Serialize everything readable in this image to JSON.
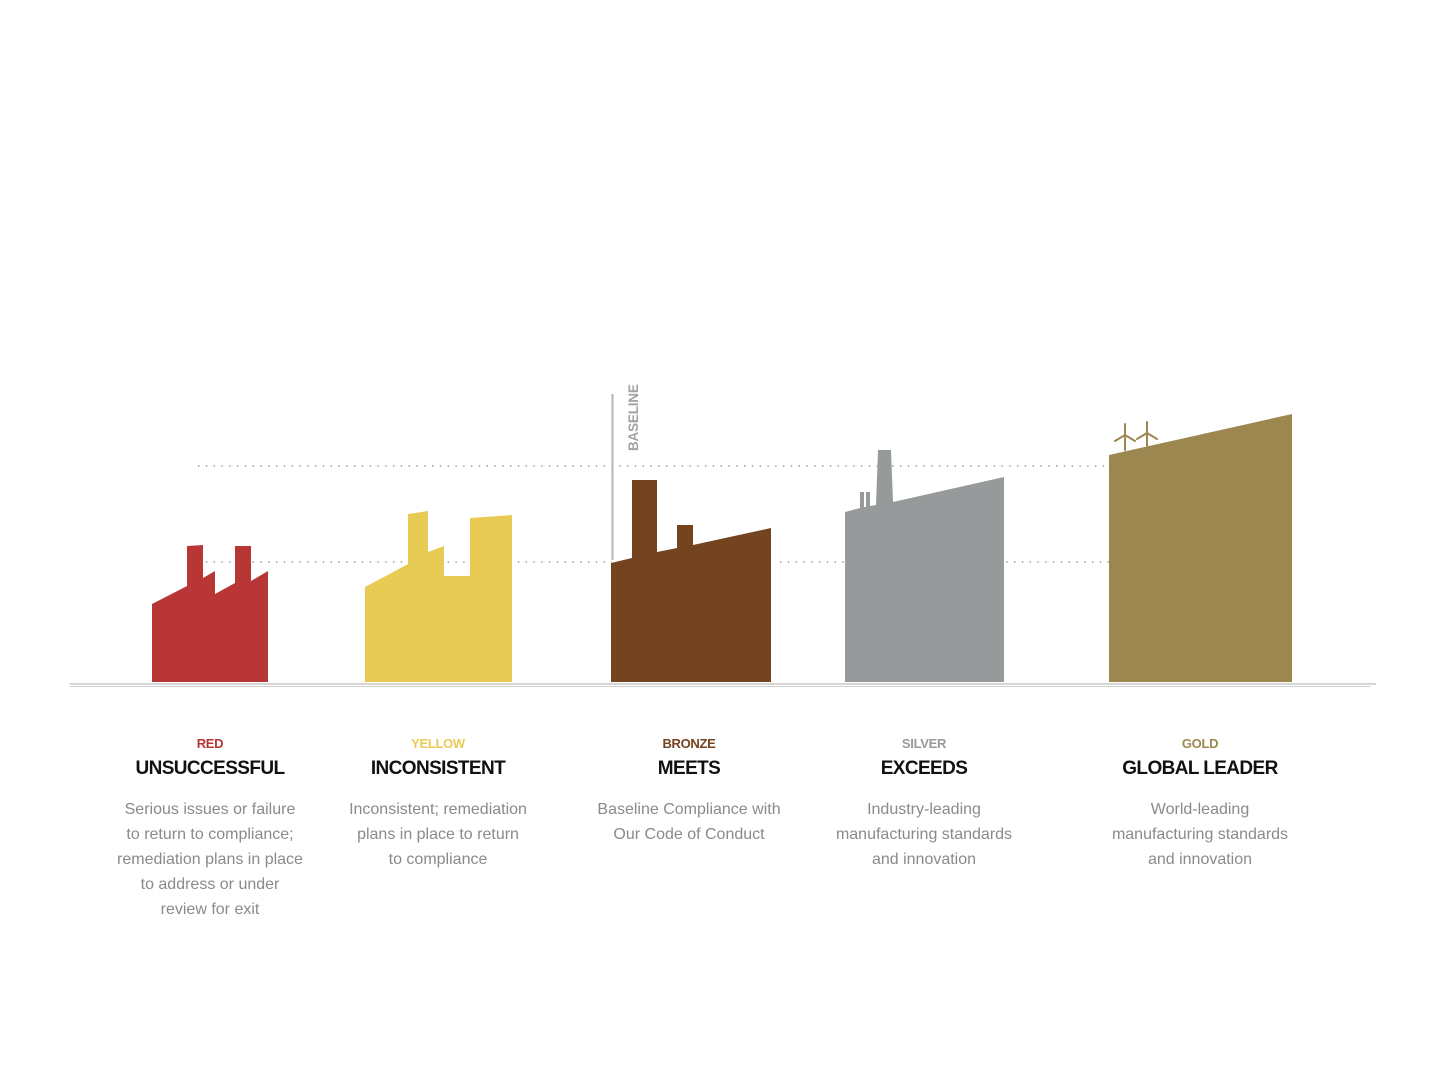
{
  "baseline_label": "BASELINE",
  "tiers": [
    {
      "level": "RED",
      "title": "UNSUCCESSFUL",
      "color": "#b93636",
      "description_lines": [
        "Serious issues or failure",
        "to return to compliance;",
        "remediation plans in place",
        "to address or under",
        "review for exit"
      ]
    },
    {
      "level": "YELLOW",
      "title": "INCONSISTENT",
      "color": "#e8cb55",
      "description_lines": [
        "Inconsistent; remediation",
        "plans in place to return",
        "to compliance"
      ]
    },
    {
      "level": "BRONZE",
      "title": "MEETS",
      "color": "#74431f",
      "description_lines": [
        "Baseline Compliance with",
        "Our Code of Conduct"
      ]
    },
    {
      "level": "SILVER",
      "title": "EXCEEDS",
      "color": "#969a9b",
      "description_lines": [
        "Industry-leading",
        "manufacturing standards",
        "and innovation"
      ]
    },
    {
      "level": "GOLD",
      "title": "GLOBAL LEADER",
      "color": "#9d8751",
      "description_lines": [
        "World-leading",
        "manufacturing standards",
        "and innovation"
      ]
    }
  ],
  "icons": {
    "factory": "factory-icon",
    "wind_turbine": "wind-turbine-icon"
  }
}
